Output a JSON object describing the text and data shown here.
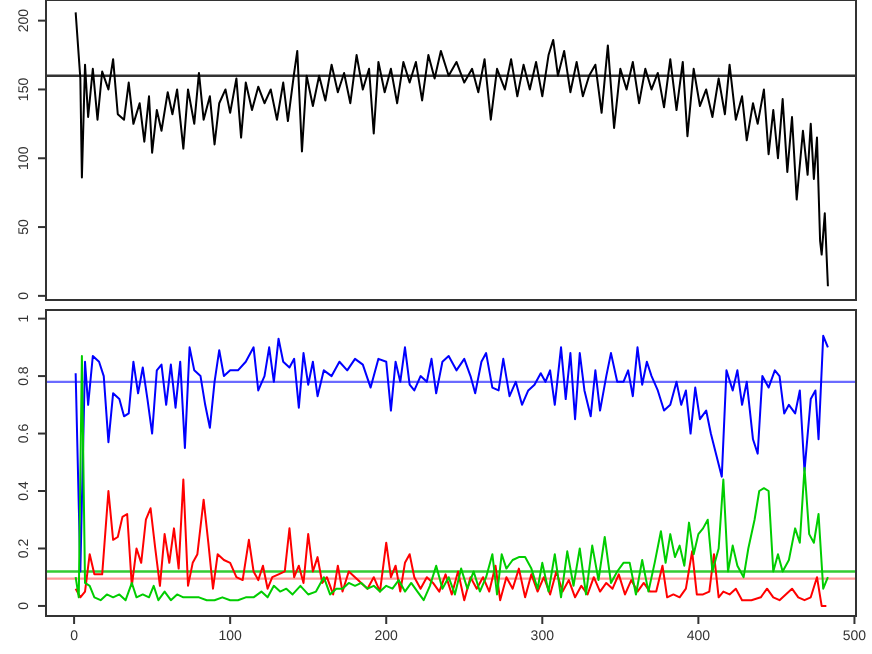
{
  "chart_data": [
    {
      "type": "line",
      "xlim": [
        -18,
        501
      ],
      "ylim": [
        -3,
        215
      ],
      "yticks": [
        0,
        50,
        100,
        150,
        200
      ],
      "tick_labels": "y",
      "grid": false,
      "line_style": "solid",
      "ref_lines": [
        {
          "axis": "y",
          "value": 160,
          "color": "#333333"
        }
      ],
      "series": [
        {
          "color": "#000000",
          "x": [
            1,
            4,
            5,
            7,
            9,
            12,
            15,
            18,
            22,
            25,
            28,
            32,
            35,
            38,
            42,
            45,
            48,
            50,
            53,
            56,
            60,
            63,
            66,
            70,
            73,
            77,
            80,
            83,
            87,
            90,
            93,
            97,
            100,
            104,
            107,
            110,
            114,
            118,
            122,
            126,
            130,
            134,
            137,
            141,
            143,
            146,
            149,
            153,
            157,
            161,
            165,
            169,
            173,
            177,
            181,
            185,
            189,
            192,
            195,
            199,
            203,
            207,
            211,
            215,
            219,
            223,
            227,
            231,
            235,
            240,
            245,
            250,
            255,
            259,
            263,
            267,
            271,
            276,
            280,
            284,
            288,
            292,
            296,
            300,
            304,
            307,
            310,
            314,
            318,
            322,
            326,
            330,
            334,
            338,
            342,
            346,
            350,
            354,
            358,
            362,
            366,
            370,
            374,
            378,
            382,
            386,
            390,
            393,
            397,
            401,
            405,
            409,
            413,
            417,
            420,
            424,
            428,
            431,
            435,
            438,
            442,
            445,
            448,
            451,
            454,
            457,
            460,
            463,
            467,
            470,
            472,
            474,
            476,
            478,
            479,
            481,
            483
          ],
          "values": [
            206,
            158,
            86,
            168,
            130,
            165,
            128,
            163,
            150,
            172,
            132,
            128,
            155,
            125,
            140,
            112,
            145,
            104,
            135,
            120,
            148,
            132,
            150,
            107,
            150,
            125,
            162,
            128,
            145,
            110,
            140,
            150,
            133,
            158,
            115,
            155,
            135,
            152,
            140,
            150,
            128,
            155,
            127,
            162,
            178,
            105,
            160,
            138,
            160,
            142,
            168,
            148,
            162,
            140,
            175,
            150,
            165,
            118,
            170,
            148,
            165,
            140,
            170,
            155,
            170,
            142,
            175,
            158,
            178,
            160,
            170,
            155,
            165,
            148,
            172,
            128,
            165,
            150,
            172,
            145,
            168,
            150,
            170,
            145,
            175,
            186,
            160,
            178,
            148,
            170,
            145,
            160,
            168,
            133,
            182,
            122,
            165,
            150,
            170,
            140,
            165,
            150,
            162,
            137,
            172,
            135,
            170,
            116,
            165,
            138,
            150,
            130,
            158,
            132,
            168,
            128,
            145,
            113,
            140,
            125,
            150,
            103,
            135,
            100,
            143,
            90,
            130,
            70,
            120,
            88,
            125,
            85,
            115,
            40,
            30,
            60,
            7
          ]
        }
      ]
    },
    {
      "type": "line",
      "xlim": [
        -18,
        501
      ],
      "xticks": [
        0,
        100,
        200,
        300,
        400,
        500
      ],
      "ylim": [
        -0.035,
        1.03
      ],
      "yticks": [
        0.0,
        0.2,
        0.4,
        0.6,
        0.8,
        1.0
      ],
      "grid": false,
      "line_style": "solid",
      "ref_lines": [
        {
          "axis": "y",
          "value": 0.78,
          "color": "#6b6bff"
        },
        {
          "axis": "y",
          "value": 0.12,
          "color": "#33cc33"
        },
        {
          "axis": "y",
          "value": 0.095,
          "color": "#ff9999"
        }
      ],
      "series": [
        {
          "color": "#0000ff",
          "x": [
            1,
            4,
            7,
            9,
            12,
            16,
            19,
            22,
            25,
            29,
            32,
            35,
            38,
            41,
            44,
            47,
            50,
            53,
            56,
            59,
            62,
            65,
            68,
            71,
            74,
            77,
            81,
            84,
            87,
            90,
            93,
            96,
            100,
            105,
            110,
            115,
            118,
            122,
            125,
            128,
            131,
            134,
            138,
            141,
            144,
            147,
            150,
            153,
            156,
            160,
            165,
            170,
            175,
            180,
            185,
            190,
            195,
            200,
            203,
            206,
            209,
            212,
            215,
            218,
            222,
            226,
            229,
            232,
            236,
            240,
            245,
            250,
            254,
            257,
            261,
            264,
            268,
            272,
            275,
            279,
            283,
            287,
            291,
            295,
            299,
            302,
            305,
            308,
            312,
            315,
            318,
            321,
            324,
            327,
            331,
            334,
            337,
            341,
            344,
            348,
            352,
            355,
            358,
            361,
            364,
            367,
            370,
            374,
            378,
            382,
            386,
            389,
            392,
            395,
            398,
            401,
            405,
            408,
            415,
            418,
            422,
            425,
            428,
            431,
            435,
            438,
            441,
            445,
            449,
            452,
            455,
            458,
            462,
            465,
            468,
            472,
            475,
            477,
            480,
            483
          ],
          "values": [
            0.81,
            0.12,
            0.85,
            0.7,
            0.87,
            0.85,
            0.8,
            0.57,
            0.74,
            0.72,
            0.66,
            0.67,
            0.85,
            0.74,
            0.83,
            0.72,
            0.6,
            0.82,
            0.84,
            0.7,
            0.84,
            0.69,
            0.85,
            0.55,
            0.9,
            0.82,
            0.8,
            0.7,
            0.62,
            0.78,
            0.89,
            0.8,
            0.82,
            0.82,
            0.85,
            0.9,
            0.75,
            0.8,
            0.9,
            0.78,
            0.93,
            0.85,
            0.83,
            0.86,
            0.69,
            0.88,
            0.77,
            0.85,
            0.73,
            0.82,
            0.8,
            0.85,
            0.82,
            0.86,
            0.84,
            0.76,
            0.86,
            0.85,
            0.68,
            0.85,
            0.78,
            0.9,
            0.77,
            0.75,
            0.8,
            0.78,
            0.86,
            0.74,
            0.85,
            0.87,
            0.82,
            0.86,
            0.8,
            0.74,
            0.85,
            0.88,
            0.76,
            0.75,
            0.86,
            0.73,
            0.78,
            0.7,
            0.75,
            0.77,
            0.81,
            0.78,
            0.82,
            0.7,
            0.9,
            0.72,
            0.88,
            0.65,
            0.88,
            0.75,
            0.66,
            0.82,
            0.68,
            0.8,
            0.88,
            0.78,
            0.78,
            0.82,
            0.73,
            0.9,
            0.77,
            0.85,
            0.8,
            0.75,
            0.68,
            0.7,
            0.78,
            0.7,
            0.75,
            0.6,
            0.76,
            0.65,
            0.68,
            0.6,
            0.45,
            0.82,
            0.75,
            0.82,
            0.7,
            0.78,
            0.58,
            0.53,
            0.8,
            0.76,
            0.82,
            0.8,
            0.67,
            0.7,
            0.67,
            0.75,
            0.47,
            0.72,
            0.75,
            0.58,
            0.94,
            0.9
          ]
        },
        {
          "color": "#ff0000",
          "x": [
            1,
            4,
            7,
            10,
            13,
            18,
            22,
            25,
            28,
            31,
            34,
            37,
            40,
            43,
            46,
            49,
            52,
            55,
            58,
            61,
            64,
            67,
            70,
            73,
            76,
            79,
            83,
            86,
            89,
            92,
            96,
            100,
            104,
            108,
            112,
            115,
            118,
            121,
            124,
            127,
            131,
            135,
            138,
            141,
            144,
            147,
            150,
            153,
            156,
            159,
            162,
            166,
            169,
            172,
            176,
            180,
            184,
            188,
            192,
            196,
            200,
            203,
            206,
            209,
            212,
            215,
            218,
            222,
            226,
            230,
            234,
            238,
            242,
            246,
            250,
            254,
            258,
            262,
            266,
            270,
            273,
            277,
            281,
            285,
            289,
            293,
            297,
            301,
            305,
            309,
            313,
            317,
            321,
            325,
            329,
            333,
            337,
            341,
            345,
            349,
            353,
            357,
            361,
            365,
            369,
            373,
            377,
            380,
            384,
            388,
            392,
            396,
            399,
            403,
            407,
            410,
            413,
            416,
            420,
            424,
            428,
            434,
            440,
            444,
            448,
            452,
            456,
            460,
            464,
            468,
            472,
            476,
            479,
            482
          ],
          "values": [
            0.06,
            0.03,
            0.05,
            0.18,
            0.11,
            0.11,
            0.4,
            0.23,
            0.24,
            0.31,
            0.32,
            0.07,
            0.2,
            0.15,
            0.3,
            0.34,
            0.2,
            0.07,
            0.25,
            0.15,
            0.27,
            0.13,
            0.44,
            0.07,
            0.15,
            0.18,
            0.37,
            0.22,
            0.06,
            0.18,
            0.16,
            0.15,
            0.1,
            0.09,
            0.23,
            0.12,
            0.09,
            0.14,
            0.06,
            0.1,
            0.11,
            0.12,
            0.27,
            0.1,
            0.14,
            0.08,
            0.25,
            0.12,
            0.17,
            0.08,
            0.1,
            0.04,
            0.14,
            0.05,
            0.12,
            0.1,
            0.08,
            0.06,
            0.1,
            0.05,
            0.22,
            0.1,
            0.14,
            0.05,
            0.15,
            0.18,
            0.1,
            0.06,
            0.1,
            0.08,
            0.05,
            0.11,
            0.04,
            0.12,
            0.02,
            0.1,
            0.06,
            0.1,
            0.05,
            0.14,
            0.02,
            0.1,
            0.06,
            0.13,
            0.03,
            0.11,
            0.05,
            0.1,
            0.04,
            0.12,
            0.05,
            0.09,
            0.03,
            0.07,
            0.04,
            0.1,
            0.05,
            0.08,
            0.06,
            0.11,
            0.04,
            0.09,
            0.05,
            0.08,
            0.05,
            0.05,
            0.14,
            0.03,
            0.04,
            0.03,
            0.06,
            0.19,
            0.04,
            0.04,
            0.05,
            0.18,
            0.03,
            0.05,
            0.04,
            0.06,
            0.02,
            0.02,
            0.03,
            0.06,
            0.03,
            0.02,
            0.04,
            0.06,
            0.03,
            0.02,
            0.03,
            0.1,
            0.0,
            0.0
          ]
        },
        {
          "color": "#00cd00",
          "x": [
            1,
            3,
            5,
            7,
            10,
            13,
            17,
            21,
            25,
            29,
            33,
            37,
            40,
            44,
            48,
            51,
            54,
            58,
            62,
            66,
            70,
            75,
            80,
            85,
            90,
            95,
            100,
            105,
            110,
            115,
            120,
            124,
            128,
            132,
            136,
            140,
            145,
            150,
            155,
            160,
            164,
            168,
            172,
            176,
            180,
            184,
            188,
            192,
            196,
            200,
            204,
            208,
            212,
            216,
            220,
            224,
            228,
            232,
            236,
            240,
            244,
            248,
            252,
            256,
            260,
            264,
            268,
            271,
            274,
            277,
            281,
            285,
            289,
            293,
            297,
            300,
            304,
            308,
            312,
            316,
            320,
            324,
            328,
            332,
            336,
            340,
            344,
            348,
            352,
            356,
            360,
            364,
            368,
            372,
            376,
            379,
            382,
            385,
            388,
            391,
            394,
            397,
            400,
            403,
            406,
            409,
            413,
            416,
            419,
            422,
            425,
            429,
            432,
            436,
            439,
            442,
            445,
            448,
            451,
            454,
            458,
            462,
            465,
            468,
            471,
            474,
            477,
            480,
            483
          ],
          "values": [
            0.1,
            0.03,
            0.87,
            0.08,
            0.07,
            0.03,
            0.02,
            0.04,
            0.03,
            0.04,
            0.02,
            0.08,
            0.03,
            0.04,
            0.03,
            0.07,
            0.02,
            0.05,
            0.02,
            0.04,
            0.03,
            0.03,
            0.03,
            0.02,
            0.02,
            0.03,
            0.02,
            0.02,
            0.03,
            0.03,
            0.05,
            0.03,
            0.07,
            0.05,
            0.06,
            0.04,
            0.07,
            0.04,
            0.05,
            0.1,
            0.04,
            0.06,
            0.06,
            0.08,
            0.07,
            0.08,
            0.06,
            0.07,
            0.05,
            0.07,
            0.06,
            0.09,
            0.05,
            0.08,
            0.05,
            0.02,
            0.07,
            0.14,
            0.06,
            0.1,
            0.04,
            0.13,
            0.06,
            0.12,
            0.05,
            0.1,
            0.18,
            0.04,
            0.18,
            0.13,
            0.16,
            0.17,
            0.17,
            0.13,
            0.06,
            0.15,
            0.05,
            0.18,
            0.03,
            0.19,
            0.07,
            0.2,
            0.04,
            0.21,
            0.09,
            0.24,
            0.08,
            0.12,
            0.15,
            0.15,
            0.04,
            0.16,
            0.05,
            0.15,
            0.26,
            0.15,
            0.25,
            0.17,
            0.21,
            0.14,
            0.29,
            0.18,
            0.25,
            0.27,
            0.3,
            0.12,
            0.2,
            0.44,
            0.12,
            0.21,
            0.14,
            0.1,
            0.2,
            0.3,
            0.4,
            0.41,
            0.4,
            0.12,
            0.18,
            0.12,
            0.16,
            0.27,
            0.22,
            0.48,
            0.25,
            0.22,
            0.32,
            0.06,
            0.1
          ]
        }
      ]
    }
  ]
}
